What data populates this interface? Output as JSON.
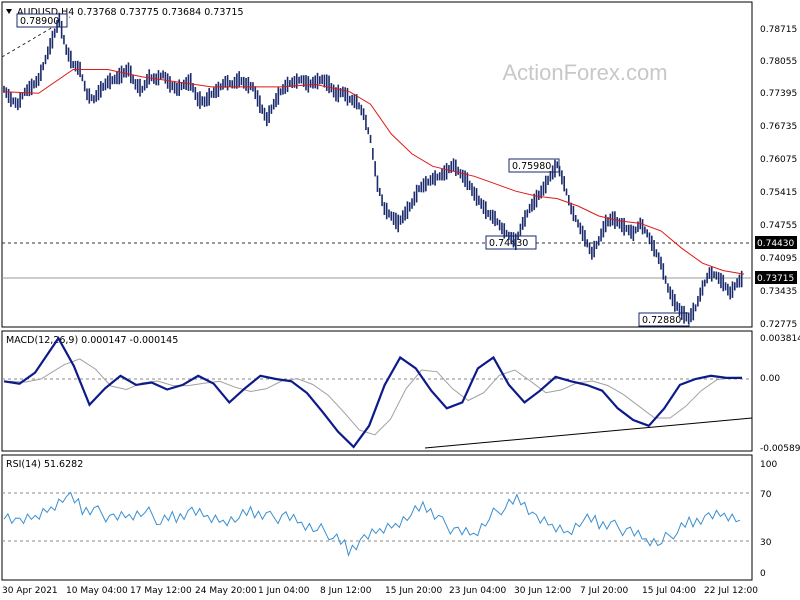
{
  "colors": {
    "candle": "#1a2a6c",
    "ma": "#e01818",
    "macd": "#0d1a8a",
    "signal": "#a0a0a0",
    "rsi": "#3a8fd0",
    "grid": "#b0b0b0",
    "frame": "#000000",
    "label_box_border": "#1a2a6c"
  },
  "watermark": "ActionForex.com",
  "price_panel": {
    "header": "AUDUSD,H4  0.73768 0.73775 0.73684 0.73715",
    "y_ticks": [
      "0.78715",
      "0.78055",
      "0.77395",
      "0.76735",
      "0.76075",
      "0.75415",
      "0.74755",
      "0.74095",
      "0.73435",
      "0.72775"
    ],
    "current_price": "0.73715",
    "resistance_level": "0.74430",
    "annotations": {
      "high_1": "0.78900",
      "high_2": "0.75980",
      "low_1": "0.74430",
      "low_2": "0.72880"
    }
  },
  "macd_panel": {
    "header": "MACD(12,26,9) 0.000147 -0.000145",
    "y_ticks": [
      "0.003814",
      "0.00",
      "0.0",
      "-0.005895"
    ]
  },
  "rsi_panel": {
    "header": "RSI(14) 51.6282",
    "y_ticks": [
      "100",
      "70",
      "30",
      "0"
    ]
  },
  "x_labels": [
    "30 Apr 2021",
    "10 May 04:00",
    "17 May 12:00",
    "24 May 20:00",
    "1 Jun 04:00",
    "8 Jun 12:00",
    "15 Jun 20:00",
    "23 Jun 04:00",
    "30 Jun 12:00",
    "7 Jul 20:00",
    "15 Jul 04:00",
    "22 Jul 12:00"
  ],
  "chart_data": {
    "type": "line",
    "title": "AUDUSD,H4",
    "x_axis": "time (4-hour bars)",
    "series": [
      {
        "name": "AUDUSD",
        "points": [
          [
            0,
            0.775
          ],
          [
            2,
            0.773
          ],
          [
            4,
            0.772
          ],
          [
            6,
            0.7745
          ],
          [
            8,
            0.7755
          ],
          [
            10,
            0.777
          ],
          [
            12,
            0.781
          ],
          [
            14,
            0.785
          ],
          [
            16,
            0.789
          ],
          [
            18,
            0.783
          ],
          [
            20,
            0.78
          ],
          [
            22,
            0.779
          ],
          [
            24,
            0.774
          ],
          [
            26,
            0.773
          ],
          [
            28,
            0.775
          ],
          [
            30,
            0.7765
          ],
          [
            32,
            0.777
          ],
          [
            34,
            0.778
          ],
          [
            36,
            0.779
          ],
          [
            38,
            0.776
          ],
          [
            40,
            0.775
          ],
          [
            42,
            0.7775
          ],
          [
            44,
            0.777
          ],
          [
            46,
            0.778
          ],
          [
            48,
            0.776
          ],
          [
            50,
            0.775
          ],
          [
            52,
            0.776
          ],
          [
            54,
            0.7765
          ],
          [
            56,
            0.773
          ],
          [
            58,
            0.7725
          ],
          [
            60,
            0.774
          ],
          [
            62,
            0.775
          ],
          [
            64,
            0.7765
          ],
          [
            66,
            0.776
          ],
          [
            68,
            0.777
          ],
          [
            70,
            0.776
          ],
          [
            72,
            0.7755
          ],
          [
            74,
            0.772
          ],
          [
            76,
            0.769
          ],
          [
            78,
            0.772
          ],
          [
            80,
            0.7745
          ],
          [
            82,
            0.776
          ],
          [
            84,
            0.7765
          ],
          [
            86,
            0.777
          ],
          [
            88,
            0.776
          ],
          [
            90,
            0.7765
          ],
          [
            92,
            0.777
          ],
          [
            94,
            0.776
          ],
          [
            96,
            0.774
          ],
          [
            98,
            0.7745
          ],
          [
            100,
            0.773
          ],
          [
            102,
            0.7725
          ],
          [
            104,
            0.77
          ],
          [
            106,
            0.765
          ],
          [
            108,
            0.756
          ],
          [
            110,
            0.751
          ],
          [
            112,
            0.7495
          ],
          [
            114,
            0.748
          ],
          [
            116,
            0.75
          ],
          [
            118,
            0.752
          ],
          [
            120,
            0.755
          ],
          [
            122,
            0.756
          ],
          [
            124,
            0.757
          ],
          [
            126,
            0.7575
          ],
          [
            128,
            0.7585
          ],
          [
            130,
            0.7598
          ],
          [
            132,
            0.758
          ],
          [
            134,
            0.7565
          ],
          [
            136,
            0.754
          ],
          [
            138,
            0.752
          ],
          [
            140,
            0.75
          ],
          [
            142,
            0.749
          ],
          [
            144,
            0.747
          ],
          [
            146,
            0.7455
          ],
          [
            148,
            0.7443
          ],
          [
            150,
            0.748
          ],
          [
            152,
            0.751
          ],
          [
            154,
            0.753
          ],
          [
            156,
            0.755
          ],
          [
            158,
            0.7575
          ],
          [
            160,
            0.7598
          ],
          [
            162,
            0.756
          ],
          [
            164,
            0.751
          ],
          [
            166,
            0.748
          ],
          [
            168,
            0.745
          ],
          [
            170,
            0.742
          ],
          [
            172,
            0.7445
          ],
          [
            174,
            0.748
          ],
          [
            176,
            0.749
          ],
          [
            178,
            0.748
          ],
          [
            180,
            0.747
          ],
          [
            182,
            0.746
          ],
          [
            184,
            0.748
          ],
          [
            186,
            0.746
          ],
          [
            188,
            0.743
          ],
          [
            190,
            0.74
          ],
          [
            192,
            0.735
          ],
          [
            194,
            0.732
          ],
          [
            196,
            0.73
          ],
          [
            198,
            0.7288
          ],
          [
            200,
            0.731
          ],
          [
            202,
            0.735
          ],
          [
            204,
            0.738
          ],
          [
            206,
            0.7375
          ],
          [
            208,
            0.736
          ],
          [
            210,
            0.734
          ],
          [
            212,
            0.736
          ],
          [
            214,
            0.7372
          ]
        ]
      },
      {
        "name": "Moving average",
        "points": [
          [
            0,
            0.7745
          ],
          [
            10,
            0.7742
          ],
          [
            20,
            0.779
          ],
          [
            30,
            0.779
          ],
          [
            40,
            0.7775
          ],
          [
            50,
            0.7765
          ],
          [
            60,
            0.7755
          ],
          [
            70,
            0.7755
          ],
          [
            80,
            0.7755
          ],
          [
            90,
            0.776
          ],
          [
            100,
            0.7745
          ],
          [
            106,
            0.772
          ],
          [
            112,
            0.766
          ],
          [
            118,
            0.762
          ],
          [
            124,
            0.7595
          ],
          [
            130,
            0.7585
          ],
          [
            136,
            0.7575
          ],
          [
            142,
            0.756
          ],
          [
            148,
            0.7545
          ],
          [
            154,
            0.7535
          ],
          [
            160,
            0.753
          ],
          [
            166,
            0.7515
          ],
          [
            172,
            0.7495
          ],
          [
            178,
            0.7485
          ],
          [
            184,
            0.748
          ],
          [
            190,
            0.7465
          ],
          [
            196,
            0.743
          ],
          [
            202,
            0.74
          ],
          [
            208,
            0.7385
          ],
          [
            214,
            0.7378
          ]
        ]
      },
      {
        "name": "MACD",
        "points": [
          [
            0,
            -0.0002
          ],
          [
            4,
            -0.0004
          ],
          [
            8,
            0.0006
          ],
          [
            14,
            0.0038
          ],
          [
            18,
            0.0012
          ],
          [
            22,
            -0.0022
          ],
          [
            26,
            -0.0008
          ],
          [
            30,
            0.0003
          ],
          [
            34,
            -0.0005
          ],
          [
            38,
            -0.0003
          ],
          [
            42,
            -0.0009
          ],
          [
            46,
            -0.0005
          ],
          [
            50,
            0.0003
          ],
          [
            54,
            -0.0004
          ],
          [
            58,
            -0.002
          ],
          [
            62,
            -0.0008
          ],
          [
            66,
            0.0003
          ],
          [
            70,
            0.0
          ],
          [
            74,
            -0.0002
          ],
          [
            78,
            -0.0012
          ],
          [
            82,
            -0.0028
          ],
          [
            86,
            -0.0045
          ],
          [
            90,
            -0.0058
          ],
          [
            94,
            -0.004
          ],
          [
            98,
            -0.0005
          ],
          [
            102,
            0.002
          ],
          [
            106,
            0.001
          ],
          [
            110,
            -0.001
          ],
          [
            114,
            -0.0025
          ],
          [
            118,
            -0.002
          ],
          [
            122,
            0.001
          ],
          [
            126,
            0.002
          ],
          [
            130,
            -0.0005
          ],
          [
            134,
            -0.002
          ],
          [
            138,
            -0.001
          ],
          [
            142,
            0.0002
          ],
          [
            146,
            -0.0002
          ],
          [
            150,
            -0.0005
          ],
          [
            154,
            -0.001
          ],
          [
            158,
            -0.0025
          ],
          [
            162,
            -0.0035
          ],
          [
            166,
            -0.004
          ],
          [
            170,
            -0.0025
          ],
          [
            174,
            -0.0005
          ],
          [
            178,
            0.0
          ],
          [
            182,
            0.0003
          ],
          [
            186,
            0.0001
          ],
          [
            190,
            0.0001
          ]
        ]
      },
      {
        "name": "RSI(14)",
        "points": [
          [
            0,
            55
          ],
          [
            4,
            45
          ],
          [
            8,
            50
          ],
          [
            12,
            60
          ],
          [
            16,
            72
          ],
          [
            20,
            58
          ],
          [
            24,
            55
          ],
          [
            28,
            50
          ],
          [
            32,
            52
          ],
          [
            36,
            56
          ],
          [
            40,
            48
          ],
          [
            44,
            52
          ],
          [
            48,
            55
          ],
          [
            52,
            50
          ],
          [
            56,
            48
          ],
          [
            60,
            52
          ],
          [
            64,
            55
          ],
          [
            68,
            50
          ],
          [
            72,
            52
          ],
          [
            76,
            45
          ],
          [
            80,
            40
          ],
          [
            84,
            35
          ],
          [
            88,
            22
          ],
          [
            92,
            30
          ],
          [
            96,
            38
          ],
          [
            100,
            45
          ],
          [
            104,
            55
          ],
          [
            108,
            60
          ],
          [
            112,
            45
          ],
          [
            116,
            38
          ],
          [
            120,
            35
          ],
          [
            124,
            50
          ],
          [
            128,
            62
          ],
          [
            132,
            68
          ],
          [
            136,
            48
          ],
          [
            140,
            42
          ],
          [
            144,
            38
          ],
          [
            148,
            50
          ],
          [
            152,
            45
          ],
          [
            156,
            42
          ],
          [
            160,
            38
          ],
          [
            164,
            30
          ],
          [
            168,
            28
          ],
          [
            172,
            40
          ],
          [
            176,
            48
          ],
          [
            180,
            50
          ],
          [
            184,
            52
          ],
          [
            188,
            48
          ]
        ]
      }
    ],
    "x_labels": [
      "30 Apr 2021",
      "10 May 04:00",
      "17 May 12:00",
      "24 May 20:00",
      "1 Jun 04:00",
      "8 Jun 12:00",
      "15 Jun 20:00",
      "23 Jun 04:00",
      "30 Jun 12:00",
      "7 Jul 20:00",
      "15 Jul 04:00",
      "22 Jul 12:00"
    ],
    "price_range": [
      0.726,
      0.789
    ],
    "macd_range": [
      -0.005895,
      0.003814
    ],
    "rsi_range": [
      0,
      100
    ],
    "rsi_levels": [
      70,
      30
    ],
    "horizontal_lines": [
      0.7443,
      0.73715
    ],
    "grid": false,
    "legend": "none"
  }
}
